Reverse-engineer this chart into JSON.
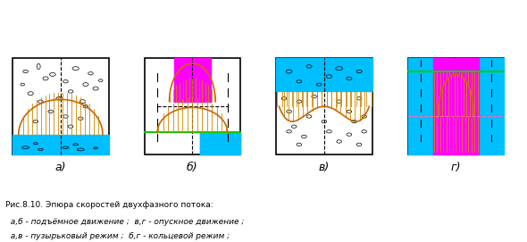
{
  "fig_width": 5.9,
  "fig_height": 2.71,
  "dpi": 100,
  "caption_line1": "Рис.8.10. Эпюра скоростей двухфазного потока:",
  "caption_line2": "  а,б - подъёмное движение ;  в,г - опускное движение ;",
  "caption_line3": "  а,в - пузырьковый режим ;  б,г - кольцевой режим ;",
  "panel_labels": [
    "а)",
    "б)",
    "в)",
    "г)"
  ],
  "colors": {
    "blue": "#00BFFF",
    "magenta": "#FF00FF",
    "orange_hatch": "#CC8800",
    "curve": "#CC6600",
    "green_line": "#00CC00",
    "black": "#000000",
    "white": "#FFFFFF",
    "bubble": "#FFFFFF"
  }
}
